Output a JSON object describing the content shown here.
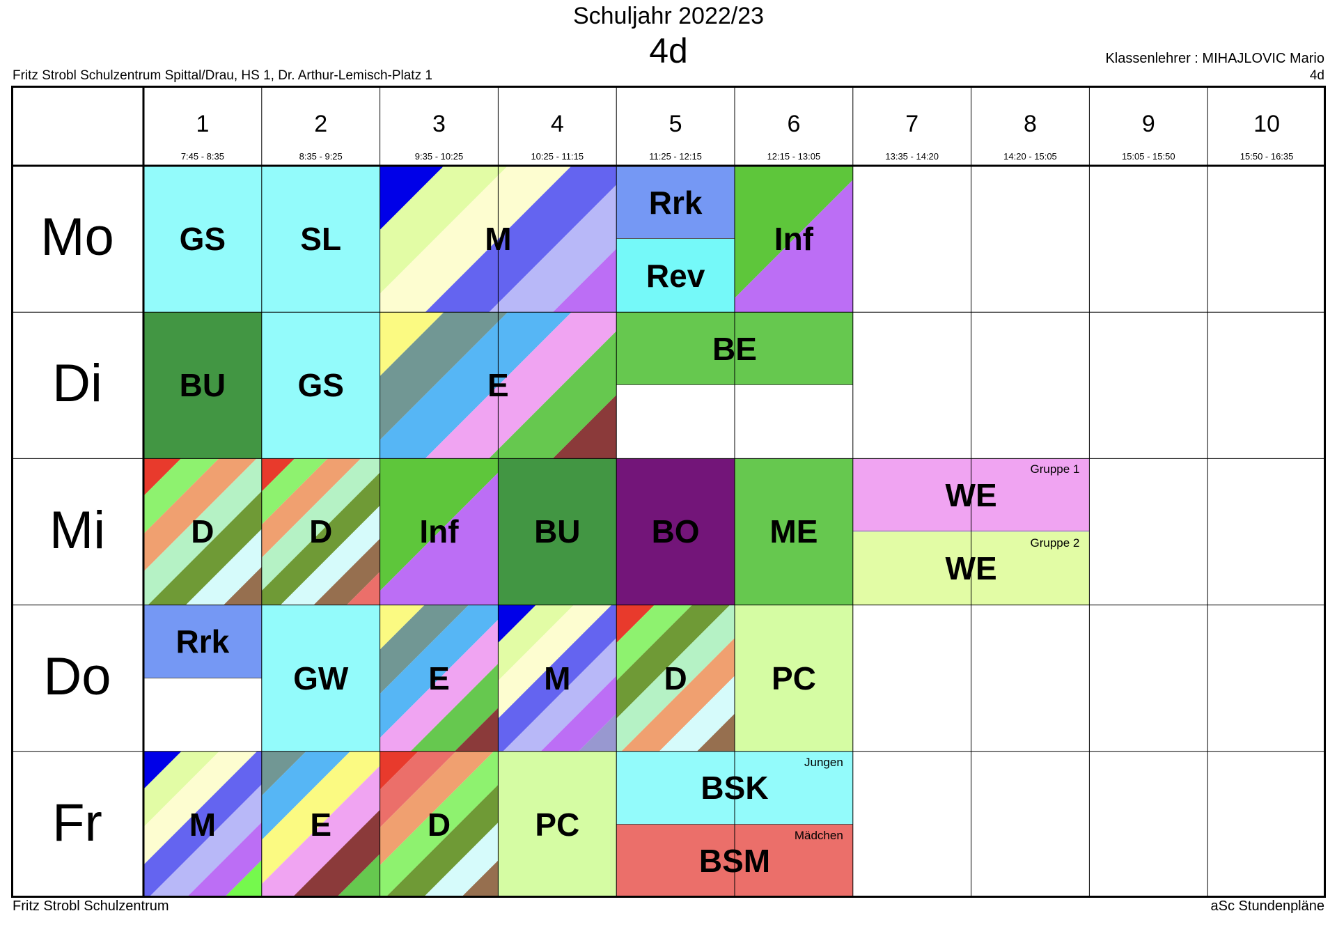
{
  "header": {
    "title": "Schuljahr 2022/23",
    "class": "4d",
    "school": "Fritz Strobl Schulzentrum Spittal/Drau, HS 1, Dr. Arthur-Lemisch-Platz 1",
    "teacher": "Klassenlehrer : MIHAJLOVIC Mario",
    "class_right": "4d"
  },
  "footer": {
    "left": "Fritz Strobl Schulzentrum",
    "right": "aSc Stundenpläne"
  },
  "periods": [
    {
      "num": "1",
      "time": "7:45 - 8:35"
    },
    {
      "num": "2",
      "time": "8:35 - 9:25"
    },
    {
      "num": "3",
      "time": "9:35 - 10:25"
    },
    {
      "num": "4",
      "time": "10:25 - 11:15"
    },
    {
      "num": "5",
      "time": "11:25 - 12:15"
    },
    {
      "num": "6",
      "time": "12:15 - 13:05"
    },
    {
      "num": "7",
      "time": "13:35 - 14:20"
    },
    {
      "num": "8",
      "time": "14:20 - 15:05"
    },
    {
      "num": "9",
      "time": "15:05 - 15:50"
    },
    {
      "num": "10",
      "time": "15:50 - 16:35"
    }
  ],
  "days": [
    "Mo",
    "Di",
    "Mi",
    "Do",
    "Fr"
  ],
  "colors": {
    "cyan": "#93fbfb",
    "darkgreen": "#429643",
    "green": "#66c84f",
    "purple": "#731579",
    "blue_rrk": "#7598f4",
    "cyan_rev": "#75f9f9",
    "lightyellowgreen": "#d5fca3",
    "pink": "#f0a4f2",
    "salmon": "#eb6f6a"
  },
  "lessons": [
    {
      "day": 0,
      "period": 1,
      "span": 1,
      "label": "GS",
      "fill": "#93fbfb"
    },
    {
      "day": 0,
      "period": 2,
      "span": 1,
      "label": "SL",
      "fill": "#93fbfb"
    },
    {
      "day": 0,
      "period": 3,
      "span": 2,
      "label": "M",
      "stripes": [
        "#0000e8",
        "#e2fca5",
        "#fdfdd0",
        "#6464f0",
        "#b8b8f8",
        "#bc6ef5"
      ]
    },
    {
      "day": 0,
      "period": 5,
      "span": 1,
      "part": "top",
      "label": "Rrk",
      "fill": "#7598f4"
    },
    {
      "day": 0,
      "period": 5,
      "span": 1,
      "part": "bottom",
      "label": "Rev",
      "fill": "#75f9f9"
    },
    {
      "day": 0,
      "period": 6,
      "span": 1,
      "label": "Inf",
      "stripes": [
        "#5ec63b",
        "#bc6ef5"
      ]
    },
    {
      "day": 1,
      "period": 1,
      "span": 1,
      "label": "BU",
      "fill": "#429643"
    },
    {
      "day": 1,
      "period": 2,
      "span": 1,
      "label": "GS",
      "fill": "#93fbfb"
    },
    {
      "day": 1,
      "period": 3,
      "span": 2,
      "label": "E",
      "stripes": [
        "#fbfa82",
        "#719794",
        "#56b6f5",
        "#f0a4f2",
        "#66c84f",
        "#8b3a3a"
      ]
    },
    {
      "day": 1,
      "period": 5,
      "span": 2,
      "part": "top",
      "label": "BE",
      "fill": "#66c84f"
    },
    {
      "day": 2,
      "period": 1,
      "span": 1,
      "label": "D",
      "stripes": [
        "#e83a2c",
        "#8ef26f",
        "#f0a070",
        "#b5f2c5",
        "#6f9a36",
        "#d6fbfb",
        "#966f4f"
      ]
    },
    {
      "day": 2,
      "period": 2,
      "span": 1,
      "label": "D",
      "stripes": [
        "#e83a2c",
        "#8ef26f",
        "#f0a070",
        "#b5f2c5",
        "#6f9a36",
        "#d6fbfb",
        "#966f4f",
        "#eb6f6a"
      ]
    },
    {
      "day": 2,
      "period": 3,
      "span": 1,
      "label": "Inf",
      "stripes": [
        "#5ec63b",
        "#bc6ef5"
      ]
    },
    {
      "day": 2,
      "period": 4,
      "span": 1,
      "label": "BU",
      "fill": "#429643"
    },
    {
      "day": 2,
      "period": 5,
      "span": 1,
      "label": "BO",
      "fill": "#731579"
    },
    {
      "day": 2,
      "period": 6,
      "span": 1,
      "label": "ME",
      "fill": "#66c84f"
    },
    {
      "day": 2,
      "period": 7,
      "span": 2,
      "part": "top",
      "label": "WE",
      "group": "Gruppe 1",
      "fill": "#f0a4f2"
    },
    {
      "day": 2,
      "period": 7,
      "span": 2,
      "part": "bottom",
      "label": "WE",
      "group": "Gruppe 2",
      "fill": "#e2fca5"
    },
    {
      "day": 3,
      "period": 1,
      "span": 1,
      "part": "top",
      "label": "Rrk",
      "fill": "#7598f4"
    },
    {
      "day": 3,
      "period": 2,
      "span": 1,
      "label": "GW",
      "fill": "#93fbfb"
    },
    {
      "day": 3,
      "period": 3,
      "span": 1,
      "label": "E",
      "stripes": [
        "#fbfa82",
        "#719794",
        "#56b6f5",
        "#f0a4f2",
        "#66c84f",
        "#8b3a3a"
      ]
    },
    {
      "day": 3,
      "period": 4,
      "span": 1,
      "label": "M",
      "stripes": [
        "#0000e8",
        "#e2fca5",
        "#fdfdd0",
        "#6464f0",
        "#b8b8f8",
        "#bc6ef5",
        "#9898d0"
      ]
    },
    {
      "day": 3,
      "period": 5,
      "span": 1,
      "label": "D",
      "stripes": [
        "#e83a2c",
        "#8ef26f",
        "#6f9a36",
        "#b5f2c5",
        "#f0a070",
        "#d6fbfb",
        "#966f4f"
      ]
    },
    {
      "day": 3,
      "period": 6,
      "span": 1,
      "label": "PC",
      "fill": "#d5fca3"
    },
    {
      "day": 4,
      "period": 1,
      "span": 1,
      "label": "M",
      "stripes": [
        "#0000e8",
        "#e2fca5",
        "#fdfdd0",
        "#6464f0",
        "#b8b8f8",
        "#bc6ef5",
        "#75f94d"
      ]
    },
    {
      "day": 4,
      "period": 2,
      "span": 1,
      "label": "E",
      "stripes": [
        "#719794",
        "#56b6f5",
        "#fbfa82",
        "#f0a4f2",
        "#8b3a3a",
        "#66c84f"
      ]
    },
    {
      "day": 4,
      "period": 3,
      "span": 1,
      "label": "D",
      "stripes": [
        "#e83a2c",
        "#eb6f6a",
        "#f0a070",
        "#8ef26f",
        "#6f9a36",
        "#d6fbfb",
        "#966f4f"
      ]
    },
    {
      "day": 4,
      "period": 4,
      "span": 1,
      "label": "PC",
      "fill": "#d5fca3"
    },
    {
      "day": 4,
      "period": 5,
      "span": 2,
      "part": "top",
      "label": "BSK",
      "group": "Jungen",
      "fill": "#93fbfb"
    },
    {
      "day": 4,
      "period": 5,
      "span": 2,
      "part": "bottom",
      "label": "BSM",
      "group": "Mädchen",
      "fill": "#eb6f6a"
    }
  ]
}
